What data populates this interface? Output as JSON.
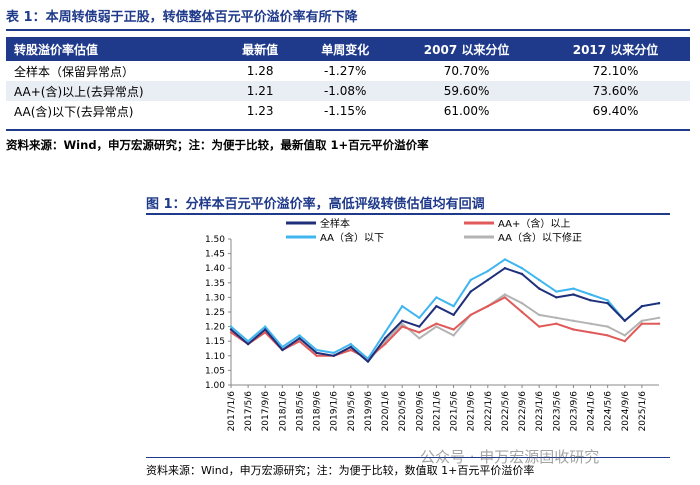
{
  "table": {
    "title": "表 1：本周转债弱于正股，转债整体百元平价溢价率有所下降",
    "headers": [
      "转股溢价率估值",
      "最新值",
      "单周变化",
      "2007 以来分位",
      "2017 以来分位"
    ],
    "rows": [
      [
        "全样本（保留异常点）",
        "1.28",
        "-1.27%",
        "70.70%",
        "72.10%"
      ],
      [
        "AA+(含)以上(去异常点)",
        "1.21",
        "-1.08%",
        "59.60%",
        "73.60%"
      ],
      [
        "AA(含)以下(去异常点)",
        "1.23",
        "-1.15%",
        "61.00%",
        "69.40%"
      ]
    ],
    "source": "资料来源：Wind，申万宏源研究；注：为便于比较，最新值取 1+百元平价溢价率"
  },
  "figure": {
    "title": "图 1：分样本百元平价溢价率，高低评级转债估值均有回调",
    "source": "资料来源：Wind，申万宏源研究；注：为便于比较，数值取 1+百元平价溢价率",
    "watermark": "公众号 · 申万宏源固收研究"
  },
  "chart_data": {
    "type": "line",
    "x": [
      "2017/1/6",
      "2017/5/6",
      "2017/9/6",
      "2018/1/6",
      "2018/5/6",
      "2018/9/6",
      "2019/1/6",
      "2019/5/6",
      "2019/9/6",
      "2020/1/6",
      "2020/5/6",
      "2020/9/6",
      "2021/1/6",
      "2021/5/6",
      "2021/9/6",
      "2022/1/6",
      "2022/5/6",
      "2022/9/6",
      "2023/1/6",
      "2023/5/6",
      "2023/9/6",
      "2024/1/6",
      "2024/5/6",
      "2024/9/6",
      "2025/1/6",
      "2025/5/6"
    ],
    "xtick_labels": [
      "2017/1/6",
      "2017/5/6",
      "2017/9/6",
      "2018/1/6",
      "2018/5/6",
      "2018/9/6",
      "2019/1/6",
      "2019/5/6",
      "2019/9/6",
      "2020/1/6",
      "2020/5/6",
      "2020/9/6",
      "2021/1/6",
      "2021/5/6",
      "2021/9/6",
      "2022/1/6",
      "2022/5/6",
      "2022/9/6",
      "2023/1/6",
      "2023/5/6",
      "2023/9/6",
      "2024/1/6",
      "2024/5/6",
      "2024/9/6",
      "2025/1/6"
    ],
    "ylim": [
      1.0,
      1.5
    ],
    "yticks": [
      "1.50",
      "1.45",
      "1.40",
      "1.35",
      "1.30",
      "1.25",
      "1.20",
      "1.15",
      "1.10",
      "1.05",
      "1.00"
    ],
    "grid": false,
    "legend": "top",
    "series": [
      {
        "name": "全样本",
        "color": "#1f2f7a",
        "values": [
          1.19,
          1.14,
          1.19,
          1.12,
          1.16,
          1.11,
          1.1,
          1.13,
          1.08,
          1.16,
          1.22,
          1.2,
          1.27,
          1.24,
          1.32,
          1.36,
          1.4,
          1.38,
          1.33,
          1.3,
          1.31,
          1.29,
          1.28,
          1.22,
          1.27,
          1.28
        ]
      },
      {
        "name": "AA+（含）以上",
        "color": "#e05a5a",
        "values": [
          1.18,
          1.14,
          1.18,
          1.12,
          1.15,
          1.1,
          1.1,
          1.12,
          1.09,
          1.14,
          1.2,
          1.18,
          1.21,
          1.19,
          1.24,
          1.27,
          1.3,
          1.25,
          1.2,
          1.21,
          1.19,
          1.18,
          1.17,
          1.15,
          1.21,
          1.21
        ]
      },
      {
        "name": "AA（含）以下",
        "color": "#3fb6f0",
        "values": [
          1.2,
          1.15,
          1.2,
          1.13,
          1.17,
          1.12,
          1.11,
          1.14,
          1.09,
          1.18,
          1.27,
          1.23,
          1.3,
          1.27,
          1.36,
          1.39,
          1.43,
          1.4,
          1.36,
          1.32,
          1.33,
          1.31,
          1.29,
          1.22,
          1.27,
          1.28
        ]
      },
      {
        "name": "AA（含）以下修正",
        "color": "#b3b3b3",
        "values": [
          1.19,
          1.14,
          1.19,
          1.12,
          1.16,
          1.11,
          1.1,
          1.13,
          1.08,
          1.15,
          1.21,
          1.16,
          1.2,
          1.17,
          1.24,
          1.27,
          1.31,
          1.28,
          1.24,
          1.23,
          1.22,
          1.21,
          1.2,
          1.17,
          1.22,
          1.23
        ]
      }
    ]
  }
}
